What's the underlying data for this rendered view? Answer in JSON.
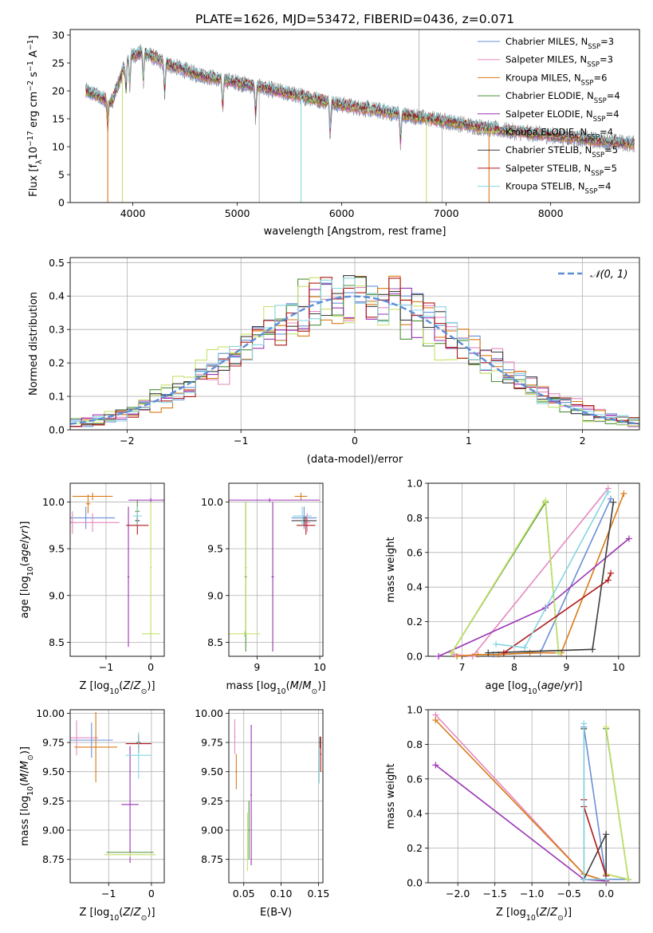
{
  "figure": {
    "title": "PLATE=1626, MJD=53472, FIBERID=0436, z=0.071"
  },
  "series_legend": [
    {
      "label": "Chabrier MILES, N",
      "sub": "SSP",
      "tail": "=3",
      "color": "#6a8fd8"
    },
    {
      "label": "Salpeter MILES, N",
      "sub": "SSP",
      "tail": "=3",
      "color": "#e589c0"
    },
    {
      "label": "Kroupa MILES, N",
      "sub": "SSP",
      "tail": "=6",
      "color": "#d97a17"
    },
    {
      "label": "Chabrier ELODIE, N",
      "sub": "SSP",
      "tail": "=4",
      "color": "#4e8f3a"
    },
    {
      "label": "Salpeter ELODIE, N",
      "sub": "SSP",
      "tail": "=4",
      "color": "#9a33b5"
    },
    {
      "label": "Kroupa ELODIE, N",
      "sub": "SSP",
      "tail": "=4",
      "color": "#c5e36b"
    },
    {
      "label": "Chabrier STELIB, N",
      "sub": "SSP",
      "tail": "=5",
      "color": "#3d3d3d"
    },
    {
      "label": "Salpeter STELIB, N",
      "sub": "SSP",
      "tail": "=5",
      "color": "#b01818"
    },
    {
      "label": "Kroupa STELIB, N",
      "sub": "SSP",
      "tail": "=4",
      "color": "#86d6e0"
    }
  ],
  "chart_data": [
    {
      "id": "spectrum",
      "type": "line",
      "xlabel": "wavelength [Angstrom, rest frame]",
      "ylabel": "Flux [f_λ 10^-17 erg cm^-2 s^-1 A^-1]",
      "xlim": [
        3400,
        8850
      ],
      "ylim": [
        0,
        31
      ],
      "xticks": [
        4000,
        5000,
        6000,
        7000,
        8000
      ],
      "yticks": [
        0,
        5,
        10,
        15,
        20,
        25,
        30
      ],
      "grid": false,
      "legend": "top-right",
      "x_range": [
        3550,
        8800
      ],
      "continuum": [
        [
          3550,
          20
        ],
        [
          3800,
          18
        ],
        [
          3950,
          26
        ],
        [
          4100,
          27
        ],
        [
          4300,
          25
        ],
        [
          4600,
          23
        ],
        [
          5000,
          21.5
        ],
        [
          5500,
          19.5
        ],
        [
          6000,
          17.5
        ],
        [
          6500,
          16
        ],
        [
          7000,
          14.5
        ],
        [
          7500,
          13
        ],
        [
          8000,
          12
        ],
        [
          8500,
          11
        ],
        [
          8800,
          10.5
        ]
      ],
      "absorption_features": [
        3760,
        3935,
        3970,
        4101,
        4305,
        4861,
        5175,
        5890,
        6563
      ],
      "model_spikes": [
        [
          3760,
          0
        ],
        [
          3900,
          0
        ],
        [
          5610,
          0
        ],
        [
          6810,
          0
        ],
        [
          7410,
          0
        ]
      ],
      "data_spikes": [
        [
          5210,
          0
        ],
        [
          6740,
          31
        ],
        [
          6960,
          0
        ]
      ]
    },
    {
      "id": "residual_histogram",
      "type": "line",
      "xlabel": "(data-model)/error",
      "ylabel": "Normed distribution",
      "xlim": [
        -2.5,
        2.5
      ],
      "ylim": [
        0,
        0.515
      ],
      "xticks": [
        -2,
        -1,
        0,
        1,
        2
      ],
      "yticks": [
        0.0,
        0.1,
        0.2,
        0.3,
        0.4,
        0.5
      ],
      "grid": true,
      "legend": "top-right",
      "legend_label": "N(0,1)",
      "bin_width": 0.1,
      "reference_curve": {
        "name": "N(0,1)",
        "mean": 0,
        "sigma": 1,
        "color": "#5b8fd6"
      }
    },
    {
      "id": "age_vs_Z",
      "type": "scatter",
      "xlabel": "Z [log10(Z/Z⊙)]",
      "ylabel": "age [log10(age/yr)]",
      "xlim": [
        -1.8,
        0.3
      ],
      "ylim": [
        8.35,
        10.2
      ],
      "xticks": [
        -1,
        0
      ],
      "yticks": [
        8.5,
        9.0,
        9.5,
        10.0
      ],
      "grid": true,
      "points": [
        {
          "series": 0,
          "x": -1.45,
          "y": 9.83,
          "xerr": 0.65,
          "yerr": 0.12
        },
        {
          "series": 1,
          "x": -1.3,
          "y": 9.78,
          "xerr": 0.6,
          "yerr": 0.1
        },
        {
          "series": 1,
          "x": -1.75,
          "y": 9.78,
          "xerr": 0.05,
          "yerr": 0.12
        },
        {
          "series": 2,
          "x": -1.3,
          "y": 10.06,
          "xerr": 0.45,
          "yerr": 0.04
        },
        {
          "series": 2,
          "x": -1.4,
          "y": 9.98,
          "xerr": 0.05,
          "yerr": 0.1
        },
        {
          "series": 3,
          "x": -0.3,
          "y": 9.9,
          "xerr": 0.05,
          "yerr": 0.12
        },
        {
          "series": 4,
          "x": 0.0,
          "y": 10.02,
          "xerr": 0.5,
          "yerr": 0.02
        },
        {
          "series": 4,
          "x": -0.5,
          "y": 9.2,
          "xerr": 0.02,
          "yerr": 0.75
        },
        {
          "series": 5,
          "x": 0.0,
          "y": 8.59,
          "xerr": 0.2,
          "yerr": 0.03
        },
        {
          "series": 5,
          "x": 0.0,
          "y": 9.3,
          "xerr": 0.02,
          "yerr": 0.7
        },
        {
          "series": 6,
          "x": -0.3,
          "y": 9.8,
          "xerr": 0.05,
          "yerr": 0.05
        },
        {
          "series": 7,
          "x": -0.3,
          "y": 9.75,
          "xerr": 0.25,
          "yerr": 0.1
        },
        {
          "series": 8,
          "x": -0.3,
          "y": 9.85,
          "xerr": 0.1,
          "yerr": 0.1
        }
      ]
    },
    {
      "id": "age_vs_mass",
      "type": "scatter",
      "xlabel": "mass [log10(M/M⊙)]",
      "ylabel": "",
      "xlim": [
        8.55,
        10.05
      ],
      "ylim": [
        8.35,
        10.2
      ],
      "xticks": [
        9,
        10
      ],
      "yticks": [
        8.5,
        9.0,
        9.5,
        10.0
      ],
      "grid": true,
      "points": [
        {
          "series": 0,
          "x": 9.75,
          "y": 9.83,
          "xerr": 0.2,
          "yerr": 0.12
        },
        {
          "series": 1,
          "x": 9.8,
          "y": 9.78,
          "xerr": 0.05,
          "yerr": 0.1
        },
        {
          "series": 2,
          "x": 9.7,
          "y": 10.06,
          "xerr": 0.1,
          "yerr": 0.04
        },
        {
          "series": 3,
          "x": 8.82,
          "y": 9.2,
          "xerr": 0.02,
          "yerr": 0.8
        },
        {
          "series": 4,
          "x": 9.2,
          "y": 10.02,
          "xerr": 0.8,
          "yerr": 0.02
        },
        {
          "series": 4,
          "x": 9.25,
          "y": 9.2,
          "xerr": 0.02,
          "yerr": 0.8
        },
        {
          "series": 5,
          "x": 8.8,
          "y": 8.59,
          "xerr": 0.25,
          "yerr": 0.03
        },
        {
          "series": 5,
          "x": 8.82,
          "y": 9.3,
          "xerr": 0.02,
          "yerr": 0.7
        },
        {
          "series": 6,
          "x": 9.75,
          "y": 9.8,
          "xerr": 0.2,
          "yerr": 0.05
        },
        {
          "series": 7,
          "x": 9.78,
          "y": 9.75,
          "xerr": 0.15,
          "yerr": 0.1
        },
        {
          "series": 8,
          "x": 9.72,
          "y": 9.85,
          "xerr": 0.15,
          "yerr": 0.1
        }
      ]
    },
    {
      "id": "mass_weight_vs_age",
      "type": "line",
      "xlabel": "age [log10(age/yr)]",
      "ylabel": "mass weight",
      "xlim": [
        6.35,
        10.4
      ],
      "ylim": [
        0,
        1
      ],
      "xticks": [
        7,
        8,
        9,
        10
      ],
      "yticks": [
        0.0,
        0.2,
        0.4,
        0.6,
        0.8,
        1.0
      ],
      "grid": true,
      "series": [
        {
          "index": 0,
          "x": [
            7.6,
            8.5,
            9.85
          ],
          "y": [
            0.01,
            0.02,
            0.91
          ]
        },
        {
          "index": 1,
          "x": [
            6.85,
            7.2,
            9.8
          ],
          "y": [
            0.01,
            0.0,
            0.97
          ]
        },
        {
          "index": 2,
          "x": [
            6.9,
            7.3,
            7.7,
            8.3,
            8.9,
            10.1
          ],
          "y": [
            0.0,
            0.01,
            0.01,
            0.02,
            0.02,
            0.94
          ]
        },
        {
          "index": 3,
          "x": [
            6.8,
            8.6,
            8.85
          ],
          "y": [
            0.02,
            0.89,
            0.02
          ]
        },
        {
          "index": 4,
          "x": [
            6.55,
            8.6,
            10.2
          ],
          "y": [
            0.0,
            0.28,
            0.68
          ]
        },
        {
          "index": 5,
          "x": [
            6.8,
            8.6,
            8.85
          ],
          "y": [
            0.02,
            0.9,
            0.02
          ]
        },
        {
          "index": 6,
          "x": [
            7.5,
            9.5,
            9.9
          ],
          "y": [
            0.02,
            0.04,
            0.89
          ]
        },
        {
          "index": 7,
          "x": [
            7.8,
            9.8,
            9.85
          ],
          "y": [
            0.02,
            0.44,
            0.48
          ]
        },
        {
          "index": 8,
          "x": [
            7.65,
            8.2,
            9.8
          ],
          "y": [
            0.07,
            0.05,
            0.95
          ]
        }
      ]
    },
    {
      "id": "mass_vs_Z",
      "type": "scatter",
      "xlabel": "Z [log10(Z/Z⊙)]",
      "ylabel": "mass [log10(M/M⊙)]",
      "xlim": [
        -1.9,
        0.3
      ],
      "ylim": [
        8.55,
        10.03
      ],
      "xticks": [
        -1,
        0
      ],
      "yticks": [
        8.75,
        9.0,
        9.25,
        9.5,
        9.75,
        10.0
      ],
      "grid": true,
      "points": [
        {
          "series": 0,
          "x": -1.4,
          "y": 9.77,
          "xerr": 0.5,
          "yerr": 0.15
        },
        {
          "series": 1,
          "x": -1.75,
          "y": 9.79,
          "xerr": 0.5,
          "yerr": 0.15
        },
        {
          "series": 2,
          "x": -1.3,
          "y": 9.71,
          "xerr": 0.5,
          "yerr": 0.3
        },
        {
          "series": 3,
          "x": -0.5,
          "y": 8.81,
          "xerr": 0.55,
          "yerr": 0.02
        },
        {
          "series": 4,
          "x": -0.5,
          "y": 9.22,
          "xerr": 0.2,
          "yerr": 0.5
        },
        {
          "series": 5,
          "x": -0.5,
          "y": 8.79,
          "xerr": 0.6,
          "yerr": 0.02
        },
        {
          "series": 6,
          "x": -0.3,
          "y": 9.75,
          "xerr": 0.05,
          "yerr": 0.05
        },
        {
          "series": 7,
          "x": -0.3,
          "y": 9.74,
          "xerr": 0.3,
          "yerr": 0.08
        },
        {
          "series": 8,
          "x": -0.3,
          "y": 9.64,
          "xerr": 0.3,
          "yerr": 0.2
        }
      ]
    },
    {
      "id": "mass_vs_EBV",
      "type": "scatter",
      "xlabel": "E(B-V)",
      "ylabel": "",
      "xlim": [
        0.03,
        0.156
      ],
      "ylim": [
        8.55,
        10.03
      ],
      "xticks": [
        0.05,
        0.1,
        0.15
      ],
      "yticks": [
        8.75,
        9.0,
        9.25,
        9.5,
        9.75,
        10.0
      ],
      "grid": true,
      "points": [
        {
          "series": 1,
          "x": 0.038,
          "y": 9.8,
          "xerr": 0.001,
          "yerr": 0.15
        },
        {
          "series": 2,
          "x": 0.04,
          "y": 9.5,
          "xerr": 0.001,
          "yerr": 0.15
        },
        {
          "series": 3,
          "x": 0.057,
          "y": 9.0,
          "xerr": 0.001,
          "yerr": 0.25
        },
        {
          "series": 4,
          "x": 0.06,
          "y": 9.3,
          "xerr": 0.001,
          "yerr": 0.6
        },
        {
          "series": 5,
          "x": 0.055,
          "y": 8.9,
          "xerr": 0.001,
          "yerr": 0.25
        },
        {
          "series": 6,
          "x": 0.152,
          "y": 9.75,
          "xerr": 0.001,
          "yerr": 0.05
        },
        {
          "series": 7,
          "x": 0.153,
          "y": 9.65,
          "xerr": 0.001,
          "yerr": 0.15
        },
        {
          "series": 8,
          "x": 0.151,
          "y": 9.55,
          "xerr": 0.001,
          "yerr": 0.15
        }
      ]
    },
    {
      "id": "mass_weight_vs_Z",
      "type": "line",
      "xlabel": "Z [log10(Z/Z⊙)]",
      "ylabel": "mass weight",
      "xlim": [
        -2.4,
        0.45
      ],
      "ylim": [
        0,
        1
      ],
      "xticks": [
        -2.0,
        -1.5,
        -1.0,
        -0.5,
        0.0
      ],
      "yticks": [
        0.0,
        0.2,
        0.4,
        0.6,
        0.8,
        1.0
      ],
      "grid": true,
      "series": [
        {
          "index": 0,
          "x": [
            -0.3,
            0.0,
            0.3
          ],
          "y": [
            0.9,
            0.02,
            0.02
          ]
        },
        {
          "index": 1,
          "x": [
            -2.3,
            -0.3,
            0.0
          ],
          "y": [
            0.97,
            0.05,
            0.01
          ]
        },
        {
          "index": 2,
          "x": [
            -2.3,
            -0.3,
            0.0
          ],
          "y": [
            0.94,
            0.05,
            0.01
          ]
        },
        {
          "index": 3,
          "x": [
            0.0,
            0.3,
            0.0
          ],
          "y": [
            0.89,
            0.02,
            0.05
          ]
        },
        {
          "index": 4,
          "x": [
            -2.3,
            -0.3,
            0.0
          ],
          "y": [
            0.68,
            0.02,
            0.01
          ]
        },
        {
          "index": 5,
          "x": [
            0.0,
            0.3,
            0.0
          ],
          "y": [
            0.9,
            0.02,
            0.05
          ]
        },
        {
          "index": 6,
          "x": [
            -0.3,
            -0.3,
            0.0,
            0.0
          ],
          "y": [
            0.89,
            0.02,
            0.28,
            0.02
          ]
        },
        {
          "index": 7,
          "x": [
            -0.3,
            -0.3,
            0.0,
            0.0
          ],
          "y": [
            0.48,
            0.44,
            0.04,
            0.02
          ]
        },
        {
          "index": 8,
          "x": [
            -0.3,
            -0.3,
            0.0
          ],
          "y": [
            0.92,
            0.02,
            0.02
          ]
        }
      ]
    }
  ]
}
